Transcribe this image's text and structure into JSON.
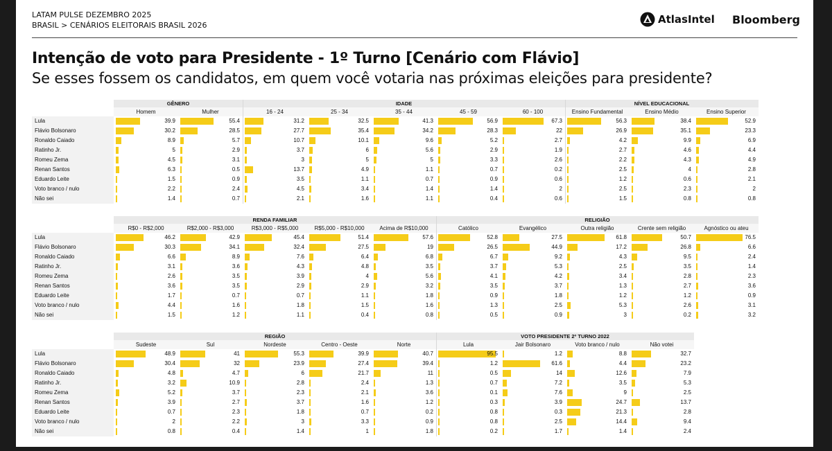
{
  "header": {
    "line1": "LATAM PULSE DEZEMBRO 2025",
    "line2": "BRASIL > CENÁRIOS ELEITORAIS BRASIL 2026",
    "brand_atlas": "AtlasIntel",
    "brand_bloomberg": "Bloomberg"
  },
  "title": "Intenção de voto para Presidente - 1º Turno [Cenário com Flávio]",
  "subtitle": "Se esses fossem os candidatos, em quem você votaria nas próximas eleições para presidente?",
  "colors": {
    "bar": "#f5cc18"
  },
  "chart_data": [
    {
      "type": "table",
      "row_labels": [
        "Lula",
        "Flávio Bolsonaro",
        "Ronaldo Caiado",
        "Ratinho Jr.",
        "Romeu Zema",
        "Renan Santos",
        "Eduardo Leite",
        "Voto branco / nulo",
        "Não sei"
      ],
      "groups": [
        {
          "name": "GÊNERO",
          "span": 2
        },
        {
          "name": "IDADE",
          "span": 5
        },
        {
          "name": "NÍVEL EDUCACIONAL",
          "span": 3
        }
      ],
      "columns": [
        "Homem",
        "Mulher",
        "16 - 24",
        "25 - 34",
        "35 - 44",
        "45 - 59",
        "60 - 100",
        "Ensino Fundamental",
        "Ensino Médio",
        "Ensino Superior"
      ],
      "values": [
        [
          39.9,
          55.4,
          31.2,
          32.5,
          41.3,
          56.9,
          67.3,
          56.3,
          38.4,
          52.9
        ],
        [
          30.2,
          28.5,
          27.7,
          35.4,
          34.2,
          28.3,
          22,
          26.9,
          35.1,
          23.3
        ],
        [
          8.9,
          5.7,
          10.7,
          10.1,
          9.6,
          5.2,
          2.7,
          4.2,
          9.9,
          6.9
        ],
        [
          5,
          2.9,
          3.7,
          6,
          5.6,
          2.9,
          1.9,
          2.7,
          4.6,
          4.4
        ],
        [
          4.5,
          3.1,
          3,
          5,
          5,
          3.3,
          2.6,
          2.2,
          4.3,
          4.9
        ],
        [
          6.3,
          0.5,
          13.7,
          4.9,
          1.1,
          0.7,
          0.2,
          2.5,
          4,
          2.8
        ],
        [
          1.5,
          0.9,
          3.5,
          1.1,
          0.7,
          0.9,
          0.6,
          1.2,
          0.6,
          2.1
        ],
        [
          2.2,
          2.4,
          4.5,
          3.4,
          1.4,
          1.4,
          2,
          2.5,
          2.3,
          2
        ],
        [
          1.4,
          0.7,
          2.1,
          1.6,
          1.1,
          0.4,
          0.6,
          1.5,
          0.8,
          0.8
        ]
      ]
    },
    {
      "type": "table",
      "row_labels": [
        "Lula",
        "Flávio Bolsonaro",
        "Ronaldo Caiado",
        "Ratinho Jr.",
        "Romeu Zema",
        "Renan Santos",
        "Eduardo Leite",
        "Voto branco / nulo",
        "Não sei"
      ],
      "groups": [
        {
          "name": "RENDA FAMILIAR",
          "span": 5
        },
        {
          "name": "RELIGIÃO",
          "span": 5
        }
      ],
      "columns": [
        "R$0 - R$2,000",
        "R$2,000 - R$3,000",
        "R$3,000 - R$5,000",
        "R$5,000 - R$10,000",
        "Acima de R$10,000",
        "Católico",
        "Evangélico",
        "Outra religião",
        "Crente sem religião",
        "Agnóstico ou ateu"
      ],
      "values": [
        [
          46.2,
          42.9,
          45.4,
          51.4,
          57.6,
          52.8,
          27.5,
          61.8,
          50.7,
          76.5
        ],
        [
          30.3,
          34.1,
          32.4,
          27.5,
          19,
          26.5,
          44.9,
          17.2,
          26.8,
          6.6
        ],
        [
          6.6,
          8.9,
          7.6,
          6.4,
          6.8,
          6.7,
          9.2,
          4.3,
          9.5,
          2.4
        ],
        [
          3.1,
          3.6,
          4.3,
          4.8,
          3.5,
          3.7,
          5.3,
          2.5,
          3.5,
          1.4
        ],
        [
          2.6,
          3.5,
          3.9,
          4,
          5.6,
          4.1,
          4.2,
          3.4,
          2.8,
          2.3
        ],
        [
          3.6,
          3.5,
          2.9,
          2.9,
          3.2,
          3.5,
          3.7,
          1.3,
          2.7,
          3.6
        ],
        [
          1.7,
          0.7,
          0.7,
          1.1,
          1.8,
          0.9,
          1.8,
          1.2,
          1.2,
          0.9
        ],
        [
          4.4,
          1.6,
          1.8,
          1.5,
          1.6,
          1.3,
          2.5,
          5.3,
          2.6,
          3.1
        ],
        [
          1.5,
          1.2,
          1.1,
          0.4,
          0.8,
          0.5,
          0.9,
          3,
          0.2,
          3.2
        ]
      ]
    },
    {
      "type": "table",
      "row_labels": [
        "Lula",
        "Flávio Bolsonaro",
        "Ronaldo Caiado",
        "Ratinho Jr.",
        "Romeu Zema",
        "Renan Santos",
        "Eduardo Leite",
        "Voto branco / nulo",
        "Não sei"
      ],
      "groups": [
        {
          "name": "REGIÃO",
          "span": 5
        },
        {
          "name": "VOTO PRESIDENTE 2º TURNO 2022",
          "span": 4
        }
      ],
      "columns": [
        "Sudeste",
        "Sul",
        "Nordeste",
        "Centro - Oeste",
        "Norte",
        "Lula",
        "Jair Bolsonaro",
        "Voto branco / nulo",
        "Não votei"
      ],
      "values": [
        [
          48.9,
          41,
          55.3,
          39.9,
          40.7,
          95.5,
          1.2,
          8.8,
          32.7
        ],
        [
          30.4,
          32,
          23.9,
          27.4,
          39.4,
          1.2,
          61.6,
          4.4,
          23.2
        ],
        [
          4.8,
          4.7,
          6,
          21.7,
          11,
          0.5,
          14,
          12.6,
          7.9
        ],
        [
          3.2,
          10.9,
          2.8,
          2.4,
          1.3,
          0.7,
          7.2,
          3.5,
          5.3
        ],
        [
          5.2,
          3.7,
          2.3,
          2.1,
          3.6,
          0.1,
          7.6,
          9,
          2.5
        ],
        [
          3.9,
          2.7,
          3.7,
          1.6,
          1.2,
          0.3,
          3.9,
          24.7,
          13.7
        ],
        [
          0.7,
          2.3,
          1.8,
          0.7,
          0.2,
          0.8,
          0.3,
          21.3,
          2.8
        ],
        [
          2,
          2.2,
          3,
          3.3,
          0.9,
          0.8,
          2.5,
          14.4,
          9.4
        ],
        [
          0.8,
          0.4,
          1.4,
          1,
          1.8,
          0.2,
          1.7,
          1.4,
          2.4
        ]
      ]
    }
  ]
}
